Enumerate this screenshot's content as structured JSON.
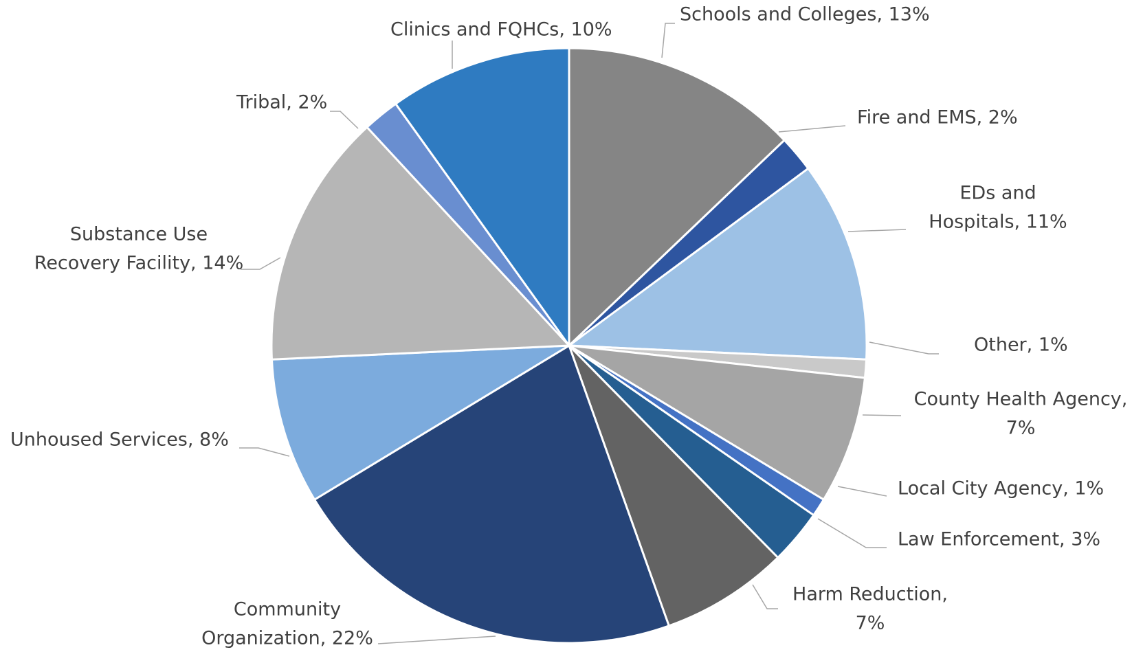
{
  "chart_data": {
    "type": "pie",
    "title": "",
    "start": "top",
    "direction": "clockwise",
    "legend": "none",
    "slices": [
      {
        "label": "Schools and Colleges",
        "value": 13,
        "display": "13%",
        "color": "#858585"
      },
      {
        "label": "Fire and EMS",
        "value": 2,
        "display": "2%",
        "color": "#2e55a0"
      },
      {
        "label": "EDs and Hospitals",
        "value": 11,
        "display": "11%",
        "color": "#9dc1e5"
      },
      {
        "label": "Other",
        "value": 1,
        "display": "1%",
        "color": "#c9c9c9"
      },
      {
        "label": "County Health Agency",
        "value": 7,
        "display": "7%",
        "color": "#a5a5a5"
      },
      {
        "label": "Local City Agency",
        "value": 1,
        "display": "1%",
        "color": "#4472c4"
      },
      {
        "label": "Law Enforcement",
        "value": 3,
        "display": "3%",
        "color": "#255e91"
      },
      {
        "label": "Harm Reduction",
        "value": 7,
        "display": "7%",
        "color": "#636363"
      },
      {
        "label": "Community Organization",
        "value": 22,
        "display": "22%",
        "color": "#264478"
      },
      {
        "label": "Unhoused Services",
        "value": 8,
        "display": "8%",
        "color": "#7cabdd"
      },
      {
        "label": "Substance Use Recovery Facility",
        "value": 14,
        "display": "14%",
        "color": "#b6b6b6"
      },
      {
        "label": "Tribal",
        "value": 2,
        "display": "2%",
        "color": "#698ed0"
      },
      {
        "label": "Clinics and FQHCs",
        "value": 10,
        "display": "10%",
        "color": "#2f7bc1"
      }
    ],
    "labels": [
      {
        "lines": [
          "Schools and Colleges, 13%"
        ]
      },
      {
        "lines": [
          "Fire and EMS, 2%"
        ]
      },
      {
        "lines": [
          "EDs and",
          "Hospitals, 11%"
        ]
      },
      {
        "lines": [
          "Other, 1%"
        ]
      },
      {
        "lines": [
          "County Health Agency,",
          "7%"
        ]
      },
      {
        "lines": [
          "Local City Agency, 1%"
        ]
      },
      {
        "lines": [
          "Law Enforcement, 3%"
        ]
      },
      {
        "lines": [
          "Harm Reduction,",
          "7%"
        ]
      },
      {
        "lines": [
          "Community",
          "Organization, 22%"
        ]
      },
      {
        "lines": [
          "Unhoused Services, 8%"
        ]
      },
      {
        "lines": [
          "Substance Use",
          "Recovery Facility, 14%"
        ]
      },
      {
        "lines": [
          "Tribal, 2%"
        ]
      },
      {
        "lines": [
          "Clinics and FQHCs, 10%"
        ]
      }
    ]
  }
}
